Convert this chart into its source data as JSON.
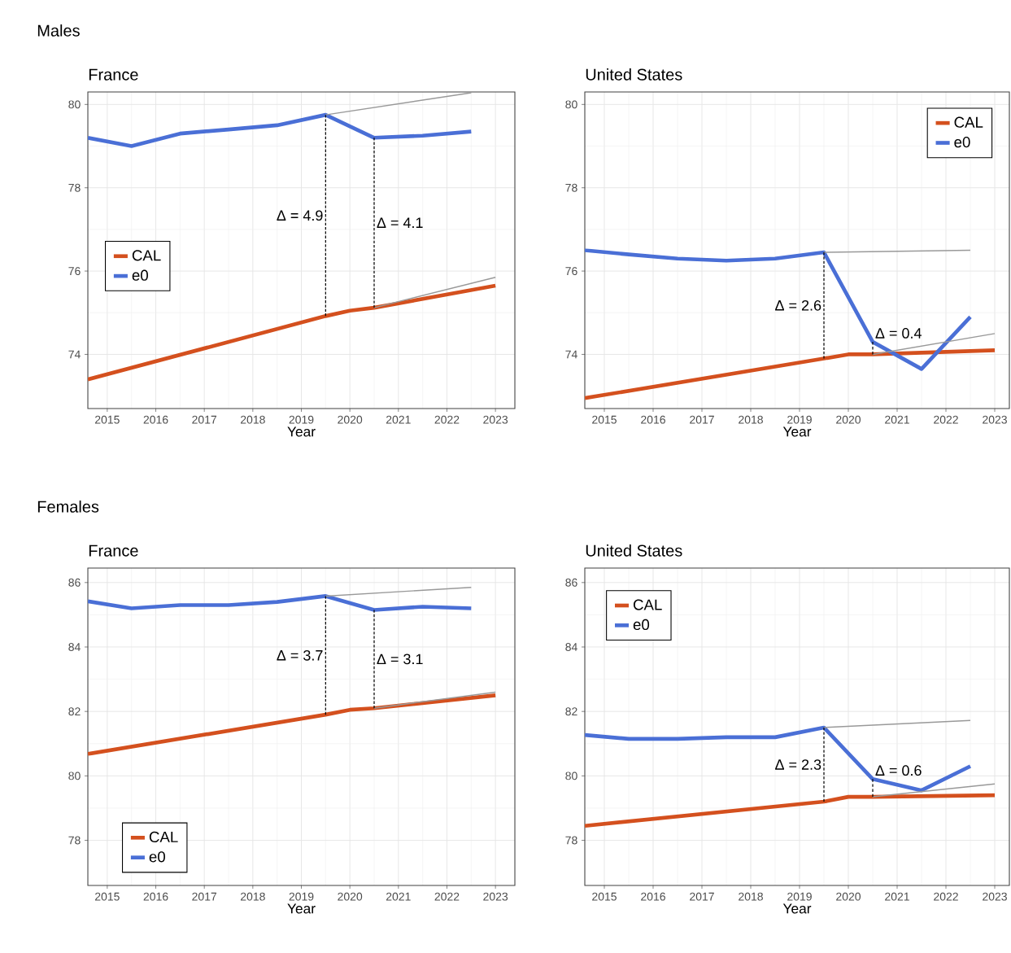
{
  "chart_data": [
    {
      "type": "line",
      "title": "France",
      "xlabel": "Year",
      "xlim": [
        2014.6,
        2023.4
      ],
      "xticks": [
        2015,
        2016,
        2017,
        2018,
        2019,
        2020,
        2021,
        2022,
        2023
      ],
      "ylim": [
        72.7,
        80.3
      ],
      "yticks": [
        74,
        76,
        78,
        80
      ],
      "grid": true,
      "legend": "left",
      "annotations": [
        "Males",
        "Δ = 4.9",
        "Δ = 4.1"
      ],
      "series": [
        {
          "name": "CAL",
          "color": "#d4501e",
          "x": [
            2014.6,
            2019.5,
            2020,
            2020.5,
            2023
          ],
          "values": [
            73.4,
            74.92,
            75.05,
            75.12,
            75.65
          ]
        },
        {
          "name": "e0",
          "color": "#4a6fd6",
          "x": [
            2014.6,
            2015.5,
            2016.5,
            2017.5,
            2018.5,
            2019.5,
            2020.5,
            2021.5,
            2022.5
          ],
          "values": [
            79.2,
            79.0,
            79.3,
            79.4,
            79.5,
            79.75,
            79.2,
            79.25,
            79.35
          ]
        },
        {
          "color": "#999999",
          "x": [
            2019.5,
            2022.5
          ],
          "values": [
            79.75,
            80.28
          ]
        },
        {
          "color": "#999999",
          "x": [
            2020.5,
            2023
          ],
          "values": [
            75.12,
            75.85
          ]
        },
        {
          "color": "#000000",
          "line_style": "dashed",
          "x": [
            2019.5,
            2019.5
          ],
          "values": [
            74.92,
            79.75
          ]
        },
        {
          "color": "#000000",
          "line_style": "dashed",
          "x": [
            2020.5,
            2020.5
          ],
          "values": [
            75.12,
            79.2
          ]
        }
      ]
    },
    {
      "type": "line",
      "title": "United States",
      "xlabel": "Year",
      "xlim": [
        2014.6,
        2023.3
      ],
      "xticks": [
        2015,
        2016,
        2017,
        2018,
        2019,
        2020,
        2021,
        2022,
        2023
      ],
      "ylim": [
        72.7,
        80.3
      ],
      "yticks": [
        74,
        76,
        78,
        80
      ],
      "grid": true,
      "legend": "top right",
      "annotations": [
        "Δ = 2.6",
        "Δ = 0.4"
      ],
      "series": [
        {
          "name": "CAL",
          "color": "#d4501e",
          "x": [
            2014.6,
            2019.5,
            2020,
            2020.5,
            2023
          ],
          "values": [
            72.95,
            73.9,
            74.0,
            74.0,
            74.1
          ]
        },
        {
          "name": "e0",
          "color": "#4a6fd6",
          "x": [
            2014.6,
            2015.5,
            2016.5,
            2017.5,
            2018.5,
            2019.5,
            2020.5,
            2021.5,
            2022.5
          ],
          "values": [
            76.5,
            76.4,
            76.3,
            76.25,
            76.3,
            76.45,
            74.3,
            73.65,
            74.9
          ]
        },
        {
          "color": "#999999",
          "x": [
            2019.5,
            2022.5
          ],
          "values": [
            76.45,
            76.5
          ]
        },
        {
          "color": "#999999",
          "x": [
            2020.5,
            2023
          ],
          "values": [
            74.0,
            74.5
          ]
        },
        {
          "color": "#000000",
          "line_style": "dashed",
          "x": [
            2019.5,
            2019.5
          ],
          "values": [
            73.9,
            76.45
          ]
        },
        {
          "color": "#000000",
          "line_style": "dashed",
          "x": [
            2020.5,
            2020.5
          ],
          "values": [
            74.0,
            74.3
          ]
        }
      ]
    },
    {
      "type": "line",
      "title": "France",
      "xlabel": "Year",
      "xlim": [
        2014.6,
        2023.4
      ],
      "xticks": [
        2015,
        2016,
        2017,
        2018,
        2019,
        2020,
        2021,
        2022,
        2023
      ],
      "ylim": [
        76.6,
        86.45
      ],
      "yticks": [
        78,
        80,
        82,
        84,
        86
      ],
      "grid": true,
      "legend": "bottom left",
      "annotations": [
        "Females",
        "Δ = 3.7",
        "Δ = 3.1"
      ],
      "series": [
        {
          "name": "CAL",
          "color": "#d4501e",
          "x": [
            2014.6,
            2019.5,
            2020,
            2020.5,
            2023
          ],
          "values": [
            80.68,
            81.9,
            82.05,
            82.1,
            82.5
          ]
        },
        {
          "name": "e0",
          "color": "#4a6fd6",
          "x": [
            2014.6,
            2015.5,
            2016.5,
            2017.5,
            2018.5,
            2019.5,
            2020.5,
            2021.5,
            2022.5
          ],
          "values": [
            85.42,
            85.2,
            85.3,
            85.3,
            85.4,
            85.58,
            85.15,
            85.25,
            85.2
          ]
        },
        {
          "color": "#999999",
          "x": [
            2019.5,
            2022.5
          ],
          "values": [
            85.58,
            85.85
          ]
        },
        {
          "color": "#999999",
          "x": [
            2020.5,
            2023
          ],
          "values": [
            82.1,
            82.6
          ]
        },
        {
          "color": "#000000",
          "line_style": "dashed",
          "x": [
            2019.5,
            2019.5
          ],
          "values": [
            81.9,
            85.58
          ]
        },
        {
          "color": "#000000",
          "line_style": "dashed",
          "x": [
            2020.5,
            2020.5
          ],
          "values": [
            82.1,
            85.15
          ]
        }
      ]
    },
    {
      "type": "line",
      "title": "United States",
      "xlabel": "Year",
      "xlim": [
        2014.6,
        2023.3
      ],
      "xticks": [
        2015,
        2016,
        2017,
        2018,
        2019,
        2020,
        2021,
        2022,
        2023
      ],
      "ylim": [
        76.6,
        86.45
      ],
      "yticks": [
        78,
        80,
        82,
        84,
        86
      ],
      "grid": true,
      "legend": "top left",
      "annotations": [
        "Δ = 2.3",
        "Δ = 0.6"
      ],
      "series": [
        {
          "name": "CAL",
          "color": "#d4501e",
          "x": [
            2014.6,
            2019.5,
            2020,
            2020.5,
            2023
          ],
          "values": [
            78.45,
            79.2,
            79.35,
            79.35,
            79.4
          ]
        },
        {
          "name": "e0",
          "color": "#4a6fd6",
          "x": [
            2014.6,
            2015.5,
            2016.5,
            2017.5,
            2018.5,
            2019.5,
            2020.5,
            2021.5,
            2022.5
          ],
          "values": [
            81.27,
            81.15,
            81.15,
            81.2,
            81.2,
            81.5,
            79.9,
            79.55,
            80.3
          ]
        },
        {
          "color": "#999999",
          "x": [
            2019.5,
            2022.5
          ],
          "values": [
            81.5,
            81.72
          ]
        },
        {
          "color": "#999999",
          "x": [
            2020.5,
            2023
          ],
          "values": [
            79.35,
            79.75
          ]
        },
        {
          "color": "#000000",
          "line_style": "dashed",
          "x": [
            2019.5,
            2019.5
          ],
          "values": [
            79.2,
            81.5
          ]
        },
        {
          "color": "#000000",
          "line_style": "dashed",
          "x": [
            2020.5,
            2020.5
          ],
          "values": [
            79.35,
            79.9
          ]
        }
      ]
    }
  ]
}
